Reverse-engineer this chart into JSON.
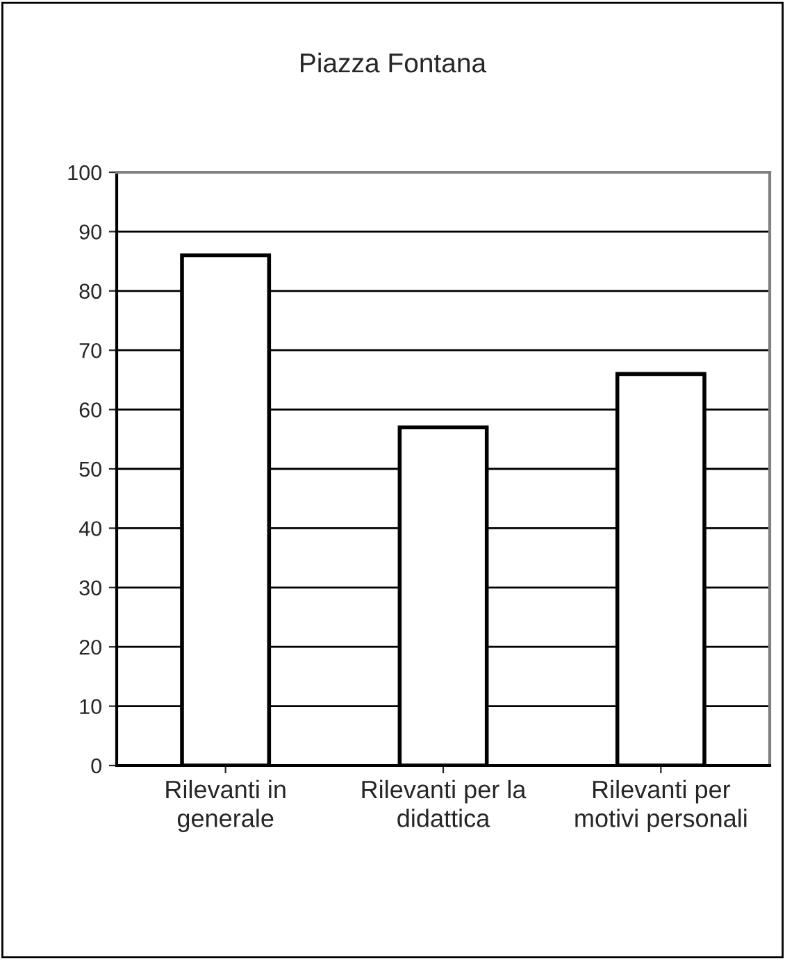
{
  "chart_data": {
    "type": "bar",
    "title": "Piazza Fontana",
    "categories": [
      "Rilevanti in generale",
      "Rilevanti per la didattica",
      "Rilevanti per motivi personali"
    ],
    "values": [
      86,
      57,
      66
    ],
    "color": "#ffffff",
    "ylim": [
      0,
      100
    ],
    "yticks": [
      0,
      10,
      20,
      30,
      40,
      50,
      60,
      70,
      80,
      90,
      100
    ],
    "grid": "y",
    "legend": false
  }
}
